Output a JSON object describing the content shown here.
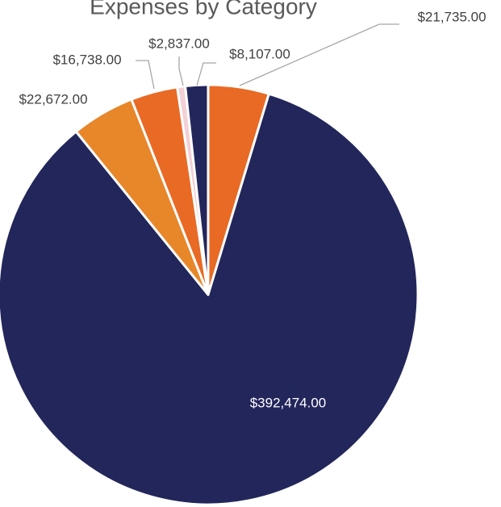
{
  "chart_data": {
    "type": "pie",
    "title": "Expenses by Category",
    "values": [
      21735,
      392474,
      22672,
      16738,
      2837,
      8107
    ],
    "value_labels": [
      "$21,735.00",
      "$392,474.00",
      "$22,672.00",
      "$16,738.00",
      "$2,837.00",
      "$8,107.00"
    ],
    "colors": [
      "#e86a25",
      "#23265a",
      "#e8862a",
      "#e86a25",
      "#f3cfd6",
      "#23265a"
    ]
  }
}
